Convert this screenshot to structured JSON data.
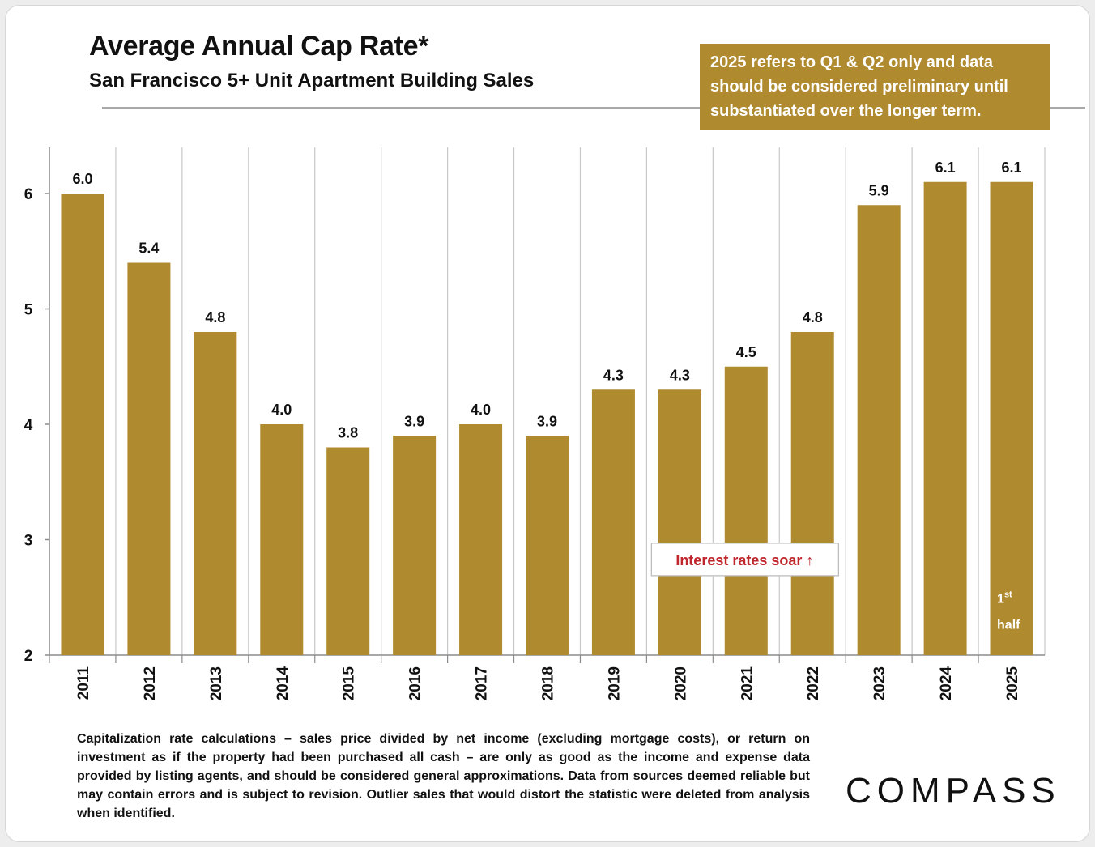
{
  "header": {
    "title": "Average Annual Cap Rate*",
    "subtitle": "San Francisco 5+ Unit Apartment Building Sales"
  },
  "note": "2025 refers to Q1 & Q2 only and data should be considered preliminary until substantiated over the longer term.",
  "footnote": "Capitalization rate calculations – sales price divided by net income (excluding mortgage costs), or return on investment as if the property had been purchased all cash – are only as good as the income and expense data provided by listing agents, and should be considered general approximations. Data from sources deemed reliable but may contain errors and is subject to revision. Outlier sales that would distort the statistic were deleted from analysis when identified.",
  "logo": "COMPASS",
  "colors": {
    "bar": "#b08a2e",
    "grid": "#c8c8c8",
    "annotation_text": "#c0272d"
  },
  "chart_data": {
    "type": "bar",
    "categories": [
      "2011",
      "2012",
      "2013",
      "2014",
      "2015",
      "2016",
      "2017",
      "2018",
      "2019",
      "2020",
      "2021",
      "2022",
      "2023",
      "2024",
      "2025"
    ],
    "values": [
      6.0,
      5.4,
      4.8,
      4.0,
      3.8,
      3.9,
      4.0,
      3.9,
      4.3,
      4.3,
      4.5,
      4.8,
      5.9,
      6.1,
      6.1
    ],
    "data_labels": [
      "6.0",
      "5.4",
      "4.8",
      "4.0",
      "3.8",
      "3.9",
      "4.0",
      "3.9",
      "4.3",
      "4.3",
      "4.5",
      "4.8",
      "5.9",
      "6.1",
      "6.1"
    ],
    "title": "Average Annual Cap Rate*",
    "xlabel": "",
    "ylabel": "",
    "ylim": [
      2,
      6.4
    ],
    "yticks": [
      2,
      3,
      4,
      5,
      6
    ],
    "grid": "vertical",
    "annotations": [
      {
        "text": "Interest rates soar ↑",
        "category": "2020",
        "value": 2.85
      },
      {
        "text": "1st half",
        "category": "2025",
        "value": 2.2,
        "parts": [
          "1",
          "st",
          "half"
        ]
      }
    ]
  }
}
